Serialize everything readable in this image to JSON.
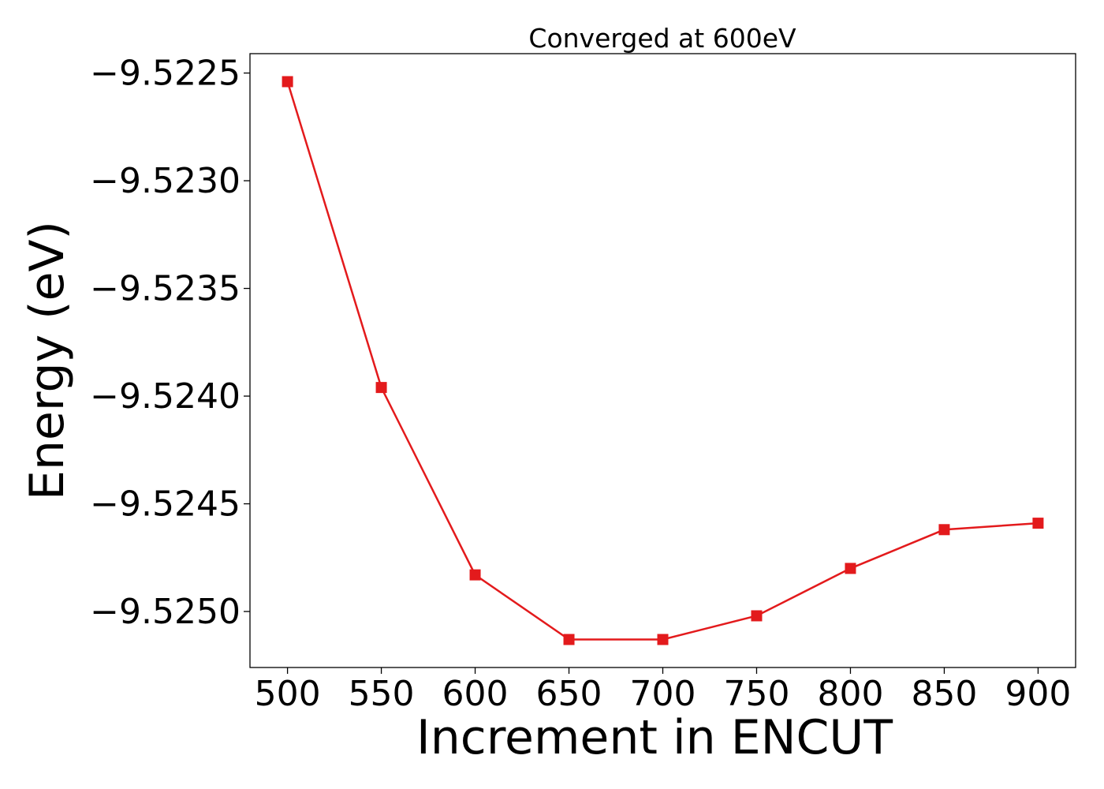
{
  "chart_data": {
    "type": "line",
    "title": "Converged at 600eV",
    "xlabel": "Increment in ENCUT",
    "ylabel": "Energy (eV)",
    "x": [
      500,
      550,
      600,
      650,
      700,
      750,
      800,
      850,
      900
    ],
    "series": [
      {
        "values": [
          -9.52254,
          -9.52396,
          -9.52483,
          -9.52513,
          -9.52513,
          -9.52502,
          -9.5248,
          -9.52462,
          -9.52459
        ],
        "color": "#e31a1c",
        "marker": "square"
      }
    ],
    "xticks": [
      500,
      550,
      600,
      650,
      700,
      750,
      800,
      850,
      900
    ],
    "xtick_labels": [
      "500",
      "550",
      "600",
      "650",
      "700",
      "750",
      "800",
      "850",
      "900"
    ],
    "yticks": [
      -9.5225,
      -9.523,
      -9.5235,
      -9.524,
      -9.5245,
      -9.525
    ],
    "ytick_labels": [
      "−9.5225",
      "−9.5230",
      "−9.5235",
      "−9.5240",
      "−9.5245",
      "−9.5250"
    ],
    "xlim": [
      480,
      920
    ],
    "ylim": [
      -9.52526,
      -9.52241
    ],
    "grid": false,
    "legend": false
  }
}
